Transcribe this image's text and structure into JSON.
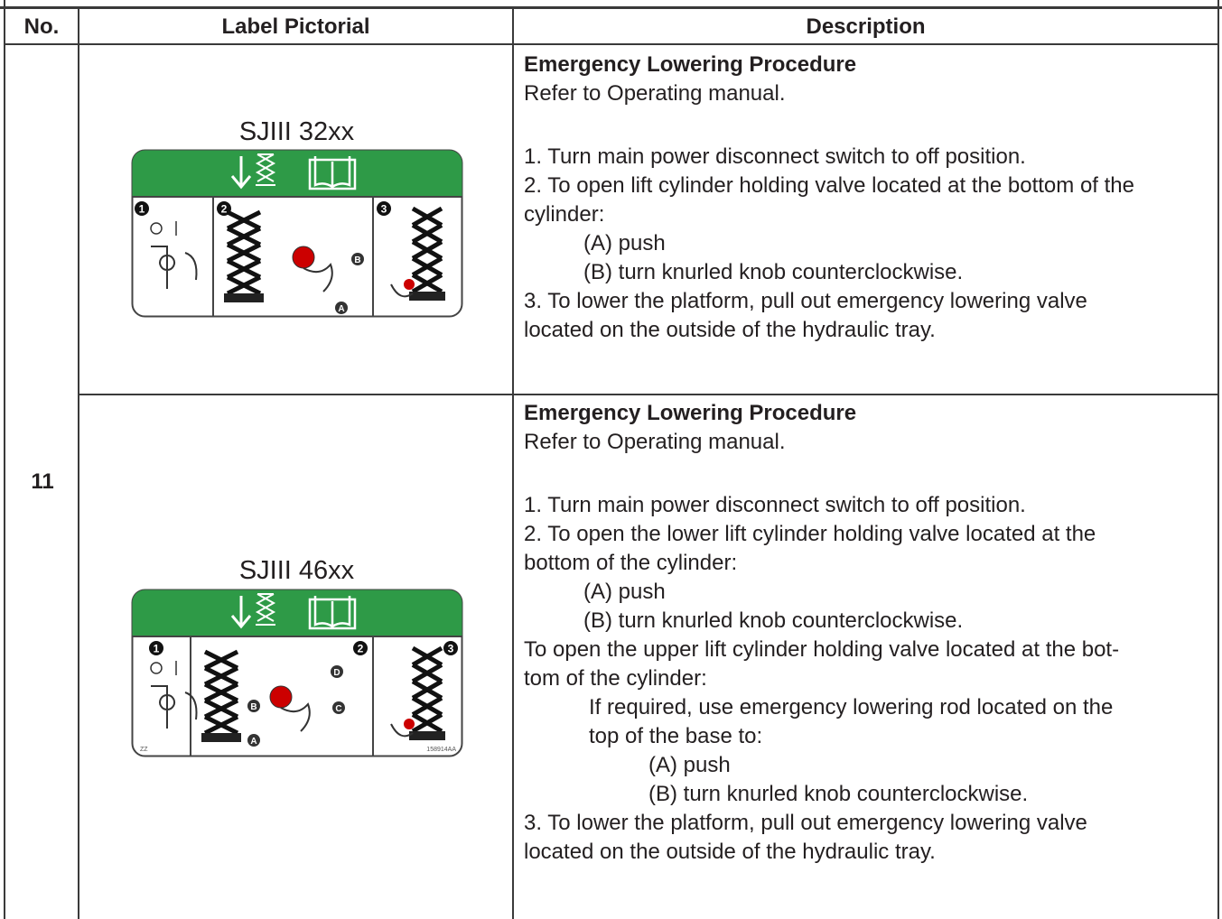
{
  "header": {
    "no": "No.",
    "pictorial": "Label Pictorial",
    "description": "Description"
  },
  "number": "11",
  "rows": [
    {
      "label": {
        "title": "SJIII 32xx",
        "steps": [
          "1",
          "2",
          "3"
        ],
        "callouts": [
          "A",
          "B"
        ]
      },
      "description": {
        "title": "Emergency Lowering Procedure",
        "note": "Refer to Operating manual.",
        "blocks": [
          {
            "lines": [
              "1. Turn main power disconnect switch to off position."
            ]
          },
          {
            "lines": [
              "2. To open lift cylinder holding valve located at the bottom of the",
              "cylinder:"
            ],
            "items": [
              "(A) push",
              "(B) turn knurled knob counterclockwise."
            ]
          },
          {
            "lines": [
              "3. To lower the platform, pull out emergency lowering valve",
              "located on the outside of the hydraulic tray."
            ]
          }
        ]
      }
    },
    {
      "label": {
        "title": "SJIII 46xx",
        "steps": [
          "1",
          "2",
          "3"
        ],
        "callouts": [
          "A",
          "B",
          "C",
          "D"
        ],
        "codes": [
          "ZZ",
          "158914AA"
        ]
      },
      "description": {
        "title": "Emergency Lowering Procedure",
        "note": "Refer to Operating manual.",
        "blocks": [
          {
            "lines": [
              "1. Turn main power disconnect switch to off position."
            ]
          },
          {
            "lines": [
              "2. To open the lower lift cylinder holding valve located at the",
              "bottom of the cylinder:"
            ],
            "items": [
              "(A) push",
              "(B) turn knurled knob counterclockwise."
            ]
          },
          {
            "lines": [
              "To open the upper lift cylinder holding valve located at the bot-",
              "tom of the cylinder:"
            ],
            "sub": {
              "lines": [
                "If required, use emergency lowering rod located on the",
                "top of the base to:"
              ],
              "items": [
                "(A) push",
                "(B) turn knurled knob counterclockwise."
              ]
            }
          },
          {
            "lines": [
              "3. To lower the platform, pull out emergency lowering valve",
              "located on the outside of the hydraulic tray."
            ]
          }
        ]
      }
    }
  ]
}
